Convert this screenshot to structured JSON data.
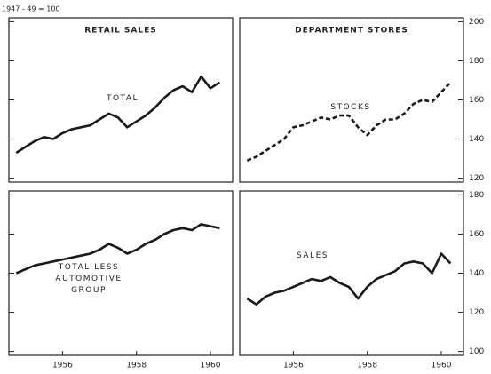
{
  "index_note": "1947 - 49 = 100",
  "chart_data": [
    {
      "type": "line",
      "title": "RETAIL SALES",
      "x": [
        1954.75,
        1955,
        1955.25,
        1955.5,
        1955.75,
        1956,
        1956.25,
        1956.5,
        1956.75,
        1957,
        1957.25,
        1957.5,
        1957.75,
        1958,
        1958.25,
        1958.5,
        1958.75,
        1959,
        1959.25,
        1959.5,
        1959.75,
        1960,
        1960.25
      ],
      "series": [
        {
          "name": "TOTAL",
          "color": "#1a1a1a",
          "values": [
            133,
            136,
            139,
            141,
            140,
            143,
            145,
            146,
            147,
            150,
            153,
            151,
            146,
            149,
            152,
            156,
            161,
            165,
            167,
            164,
            172,
            166,
            169
          ]
        }
      ],
      "xlim": [
        1954.55,
        1960.6
      ],
      "ylim": [
        118,
        202
      ]
    },
    {
      "type": "line",
      "title": "DEPARTMENT STORES",
      "x": [
        1954.75,
        1955,
        1955.25,
        1955.5,
        1955.75,
        1956,
        1956.25,
        1956.5,
        1956.75,
        1957,
        1957.25,
        1957.5,
        1957.75,
        1958,
        1958.25,
        1958.5,
        1958.75,
        1959,
        1959.25,
        1959.5,
        1959.75,
        1960,
        1960.25
      ],
      "series": [
        {
          "name": "STOCKS",
          "color": "#1a1a1a",
          "dashed": true,
          "values": [
            129,
            131,
            134,
            137,
            140,
            146,
            147,
            149,
            151,
            150,
            152,
            152,
            146,
            142,
            147,
            150,
            150,
            153,
            158,
            160,
            159,
            164,
            169
          ]
        }
      ],
      "xlim": [
        1954.55,
        1960.6
      ],
      "ylim": [
        118,
        202
      ],
      "yticks": [
        120,
        140,
        160,
        180,
        200
      ]
    },
    {
      "type": "line",
      "x": [
        1954.75,
        1955,
        1955.25,
        1955.5,
        1955.75,
        1956,
        1956.25,
        1956.5,
        1956.75,
        1957,
        1957.25,
        1957.5,
        1957.75,
        1958,
        1958.25,
        1958.5,
        1958.75,
        1959,
        1959.25,
        1959.5,
        1959.75,
        1960,
        1960.25
      ],
      "series": [
        {
          "name": "TOTAL LESS AUTOMOTIVE GROUP",
          "color": "#1a1a1a",
          "values": [
            140,
            142,
            144,
            145,
            146,
            147,
            148,
            149,
            150,
            152,
            155,
            153,
            150,
            152,
            155,
            157,
            160,
            162,
            163,
            162,
            165,
            164,
            163
          ]
        }
      ],
      "xlim": [
        1954.55,
        1960.6
      ],
      "ylim": [
        98,
        182
      ],
      "xticks": [
        1956,
        1958,
        1960
      ]
    },
    {
      "type": "line",
      "x": [
        1954.75,
        1955,
        1955.25,
        1955.5,
        1955.75,
        1956,
        1956.25,
        1956.5,
        1956.75,
        1957,
        1957.25,
        1957.5,
        1957.75,
        1958,
        1958.25,
        1958.5,
        1958.75,
        1959,
        1959.25,
        1959.5,
        1959.75,
        1960,
        1960.25
      ],
      "series": [
        {
          "name": "SALES",
          "color": "#1a1a1a",
          "values": [
            127,
            124,
            128,
            130,
            131,
            133,
            135,
            137,
            136,
            138,
            135,
            133,
            127,
            133,
            137,
            139,
            141,
            145,
            146,
            145,
            140,
            150,
            145
          ]
        }
      ],
      "xlim": [
        1954.55,
        1960.6
      ],
      "ylim": [
        98,
        182
      ],
      "yticks": [
        100,
        120,
        140,
        160,
        180
      ],
      "xticks": [
        1956,
        1958,
        1960
      ]
    }
  ]
}
